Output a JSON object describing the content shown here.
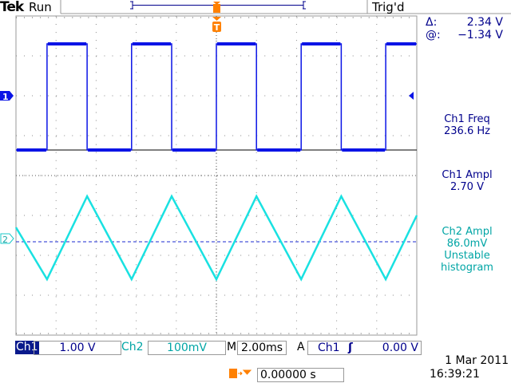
{
  "header": {
    "brand": "Tek",
    "status": "Run",
    "trigger_status": "Trig'd",
    "trigger_marker": "T"
  },
  "cursor": {
    "delta_label": "Δ:",
    "delta_value": "2.34 V",
    "at_label": "@:",
    "at_value": "−1.34 V"
  },
  "measurements": [
    {
      "label": "Ch1 Freq",
      "value": "236.6 Hz"
    },
    {
      "label": "Ch1 Ampl",
      "value": "2.70 V"
    },
    {
      "label": "Ch2 Ampl",
      "value": "86.0mV",
      "note1": "Unstable",
      "note2": "histogram"
    }
  ],
  "footer": {
    "ch1_label": "Ch1",
    "ch1_scale": "1.00 V",
    "ch2_label": "Ch2",
    "ch2_scale": "100mV",
    "timebase_label": "M",
    "timebase": "2.00ms",
    "trigger_mode": "A",
    "trigger_source": "Ch1",
    "trigger_slope": "rising-edge-icon",
    "trigger_level": "0.00 V",
    "trigger_position": "0.00000 s",
    "date": "1 Mar  2011",
    "time": "16:39:21"
  },
  "colors": {
    "ch1": "#0a14e6",
    "ch2": "#19e1e1",
    "trigger": "#ff8000",
    "text": "#00008c"
  },
  "chart_data": {
    "type": "line",
    "xlabel": "",
    "ylabel": "",
    "x_units": "ms",
    "xlim": [
      -10,
      10
    ],
    "grid": true,
    "series": [
      {
        "name": "Ch1",
        "units": "V",
        "volts_per_div": 1.0,
        "marker": "1",
        "points": [
          [
            -10,
            -1.36
          ],
          [
            -8.45,
            -1.36
          ],
          [
            -8.45,
            1.3
          ],
          [
            -6.45,
            1.3
          ],
          [
            -6.45,
            -1.36
          ],
          [
            -4.23,
            -1.36
          ],
          [
            -4.23,
            1.3
          ],
          [
            -2.23,
            1.3
          ],
          [
            -2.23,
            -1.36
          ],
          [
            0,
            -1.36
          ],
          [
            0,
            1.3
          ],
          [
            2.0,
            1.3
          ],
          [
            2.0,
            -1.36
          ],
          [
            4.23,
            -1.36
          ],
          [
            4.23,
            1.3
          ],
          [
            6.23,
            1.3
          ],
          [
            6.23,
            -1.36
          ],
          [
            8.45,
            -1.36
          ],
          [
            8.45,
            1.3
          ],
          [
            10,
            1.3
          ]
        ]
      },
      {
        "name": "Ch2",
        "units": "V",
        "volts_per_div": 0.1,
        "marker": "2",
        "points": [
          [
            -10,
            0.034
          ],
          [
            -8.45,
            -0.096
          ],
          [
            -6.45,
            0.112
          ],
          [
            -4.23,
            -0.096
          ],
          [
            -2.23,
            0.112
          ],
          [
            0,
            -0.096
          ],
          [
            2.0,
            0.112
          ],
          [
            4.23,
            -0.096
          ],
          [
            6.23,
            0.112
          ],
          [
            8.45,
            -0.096
          ],
          [
            10,
            0.064
          ]
        ]
      }
    ]
  }
}
